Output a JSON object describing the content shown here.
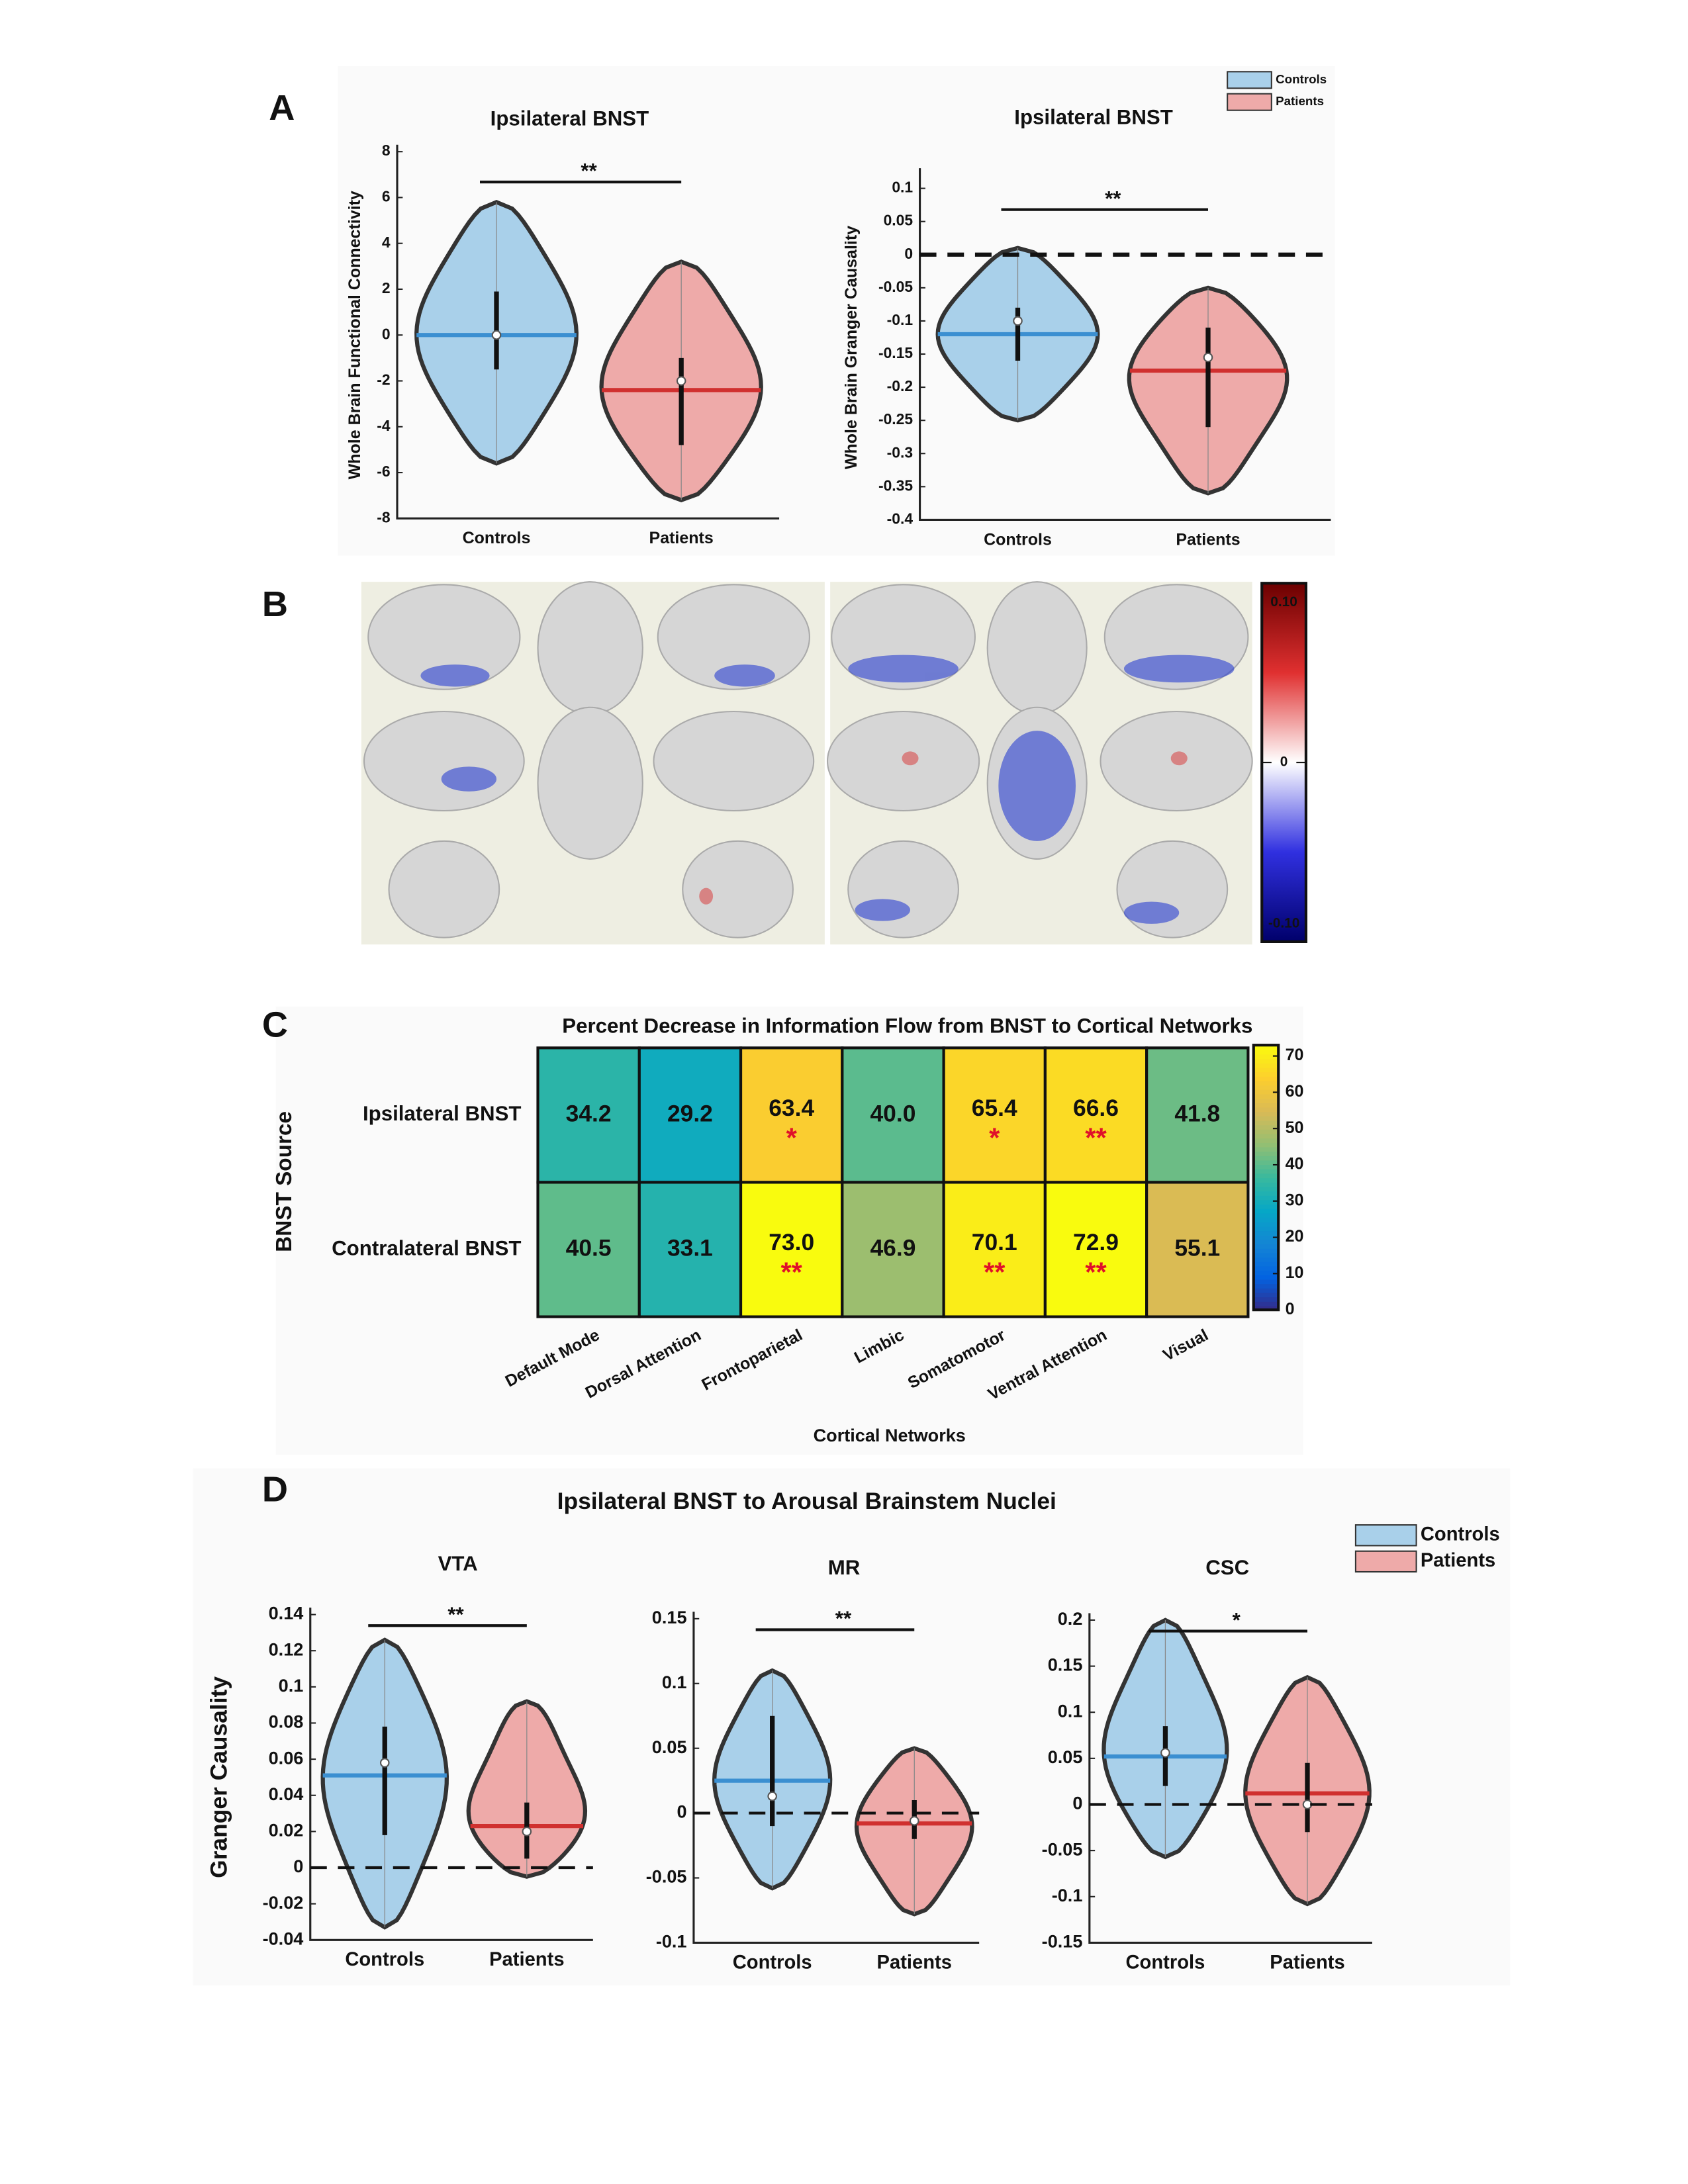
{
  "figure": {
    "panel_labels": [
      "A",
      "B",
      "C",
      "D"
    ],
    "panel_d_title": "Ipsilateral BNST to Arousal Brainstem Nuclei",
    "panel_b": {
      "clim": [
        -0.1,
        0.1
      ],
      "colorbar_ticks": [
        {
          "value": 0.1,
          "label": "0.10"
        },
        0,
        {
          "value": -0.1,
          "label": "-0.10"
        }
      ]
    }
  },
  "chart_data": [
    {
      "type": "violin",
      "title": "Ipsilateral BNST",
      "ylabel": "Whole Brain Functional Connectivity",
      "categories": [
        "Controls",
        "Patients"
      ],
      "ylim": [
        -8,
        8
      ],
      "yticks": [
        -8,
        -6,
        -4,
        -2,
        0,
        2,
        4,
        6,
        8
      ],
      "significance": "**",
      "series": [
        {
          "name": "Controls",
          "color": "#a9d0ea",
          "line_color": "#3b8fd1",
          "min": -5.6,
          "max": 5.8,
          "mean": 0,
          "median": 0,
          "q1": -1.5,
          "q3": 1.9
        },
        {
          "name": "Patients",
          "color": "#eeaaa9",
          "line_color": "#d0302f",
          "min": -7.2,
          "max": 3.2,
          "mean": -2.4,
          "median": -2.0,
          "q1": -4.8,
          "q3": -1.0
        }
      ]
    },
    {
      "type": "violin",
      "title": "Ipsilateral BNST",
      "ylabel": "Whole Brain Granger Causality",
      "categories": [
        "Controls",
        "Patients"
      ],
      "ylim": [
        -0.4,
        0.12
      ],
      "yticks": [
        -0.4,
        -0.35,
        -0.3,
        -0.25,
        -0.2,
        -0.15,
        -0.1,
        -0.05,
        0,
        0.05,
        0.1
      ],
      "reference_line": 0,
      "significance": "**",
      "legend": true,
      "series": [
        {
          "name": "Controls",
          "color": "#a9d0ea",
          "line_color": "#3b8fd1",
          "min": -0.25,
          "max": 0.01,
          "mean": -0.12,
          "median": -0.1,
          "q1": -0.16,
          "q3": -0.08
        },
        {
          "name": "Patients",
          "color": "#eeaaa9",
          "line_color": "#d0302f",
          "min": -0.36,
          "max": -0.05,
          "mean": -0.175,
          "median": -0.155,
          "q1": -0.26,
          "q3": -0.11
        }
      ]
    },
    {
      "type": "heatmap",
      "title": "Percent Decrease in Information Flow from BNST to Cortical Networks",
      "ylabel": "BNST Source",
      "xlabel": "Cortical Networks",
      "rows": [
        "Ipsilateral BNST",
        "Contralateral BNST"
      ],
      "columns": [
        "Default Mode",
        "Dorsal Attention",
        "Frontoparietal",
        "Limbic",
        "Somatomotor",
        "Ventral Attention",
        "Visual"
      ],
      "values": [
        [
          34.2,
          29.2,
          63.4,
          40.0,
          65.4,
          66.6,
          41.8
        ],
        [
          40.5,
          33.1,
          73.0,
          46.9,
          70.1,
          72.9,
          55.1
        ]
      ],
      "value_labels": [
        [
          "34.2",
          "29.2",
          "63.4",
          "40.0",
          "65.4",
          "66.6",
          "41.8"
        ],
        [
          "40.5",
          "33.1",
          "73.0",
          "46.9",
          "70.1",
          "72.9",
          "55.1"
        ]
      ],
      "significance": [
        [
          null,
          null,
          "*",
          null,
          "*",
          "**",
          null
        ],
        [
          null,
          null,
          "**",
          null,
          "**",
          "**",
          null
        ]
      ],
      "colormap": "parula",
      "clim": [
        0,
        73
      ],
      "cticks": [
        0,
        10,
        20,
        30,
        40,
        50,
        60,
        70
      ]
    },
    {
      "type": "violin",
      "title": "VTA",
      "ylabel": "Granger Causality",
      "categories": [
        "Controls",
        "Patients"
      ],
      "ylim": [
        -0.04,
        0.14
      ],
      "yticks": [
        -0.04,
        -0.02,
        0,
        0.02,
        0.04,
        0.06,
        0.08,
        0.1,
        0.12,
        0.14
      ],
      "reference_line": 0,
      "significance": "**",
      "series": [
        {
          "name": "Controls",
          "color": "#a9d0ea",
          "line_color": "#3b8fd1",
          "min": -0.033,
          "max": 0.126,
          "mean": 0.051,
          "median": 0.058,
          "q1": 0.018,
          "q3": 0.078
        },
        {
          "name": "Patients",
          "color": "#eeaaa9",
          "line_color": "#d0302f",
          "min": -0.005,
          "max": 0.092,
          "mean": 0.023,
          "median": 0.02,
          "q1": 0.005,
          "q3": 0.036
        }
      ]
    },
    {
      "type": "violin",
      "title": "MR",
      "categories": [
        "Controls",
        "Patients"
      ],
      "ylim": [
        -0.1,
        0.15
      ],
      "yticks": [
        -0.1,
        -0.05,
        0,
        0.05,
        0.1,
        0.15
      ],
      "reference_line": 0,
      "significance": "**",
      "series": [
        {
          "name": "Controls",
          "color": "#a9d0ea",
          "line_color": "#3b8fd1",
          "min": -0.058,
          "max": 0.11,
          "mean": 0.025,
          "median": 0.013,
          "q1": -0.01,
          "q3": 0.075
        },
        {
          "name": "Patients",
          "color": "#eeaaa9",
          "line_color": "#d0302f",
          "min": -0.078,
          "max": 0.05,
          "mean": -0.008,
          "median": -0.006,
          "q1": -0.02,
          "q3": 0.01
        }
      ]
    },
    {
      "type": "violin",
      "title": "CSC",
      "categories": [
        "Controls",
        "Patients"
      ],
      "ylim": [
        -0.15,
        0.2
      ],
      "yticks": [
        -0.15,
        -0.1,
        -0.05,
        0,
        0.05,
        0.1,
        0.15,
        0.2
      ],
      "reference_line": 0,
      "significance": "*",
      "legend": true,
      "series": [
        {
          "name": "Controls",
          "color": "#a9d0ea",
          "line_color": "#3b8fd1",
          "min": -0.057,
          "max": 0.2,
          "mean": 0.052,
          "median": 0.056,
          "q1": 0.02,
          "q3": 0.085
        },
        {
          "name": "Patients",
          "color": "#eeaaa9",
          "line_color": "#d0302f",
          "min": -0.108,
          "max": 0.138,
          "mean": 0.012,
          "median": 0.0,
          "q1": -0.03,
          "q3": 0.045
        }
      ]
    }
  ]
}
